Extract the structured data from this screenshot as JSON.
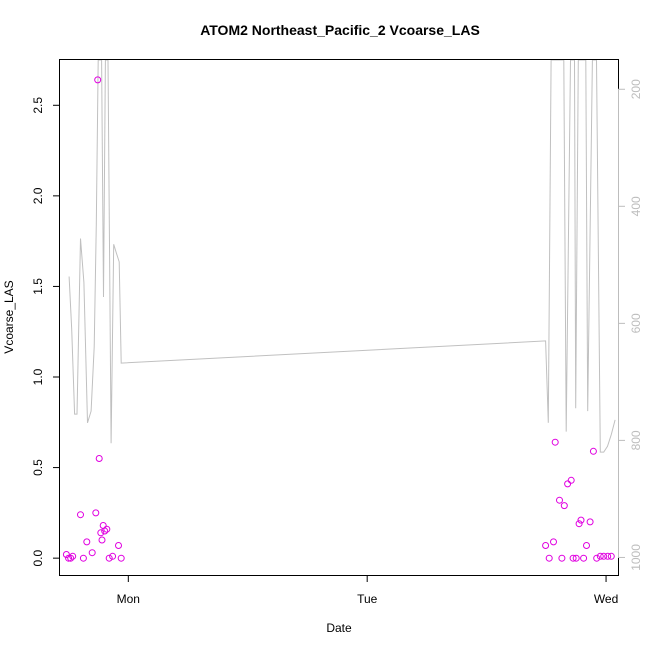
{
  "chart_data": {
    "type": "scatter",
    "title": "ATOM2 Northeast_Pacific_2 Vcoarse_LAS",
    "xlabel": "Date",
    "ylabel": "Vcoarse_LAS",
    "x_ticks": [
      "Mon",
      "Tue",
      "Wed"
    ],
    "y_ticks": [
      "0.0",
      "0.5",
      "1.0",
      "1.5",
      "2.0",
      "2.5"
    ],
    "y_tick_values": [
      0,
      0.5,
      1.0,
      1.5,
      2.0,
      2.5
    ],
    "y2_ticks": [
      "200",
      "400",
      "600",
      "800",
      "1000"
    ],
    "y2_tick_values": [
      200,
      400,
      600,
      800,
      1000
    ],
    "y2_reversed": true,
    "xlim": [
      -0.286,
      2.05
    ],
    "ylim": [
      -0.093,
      2.75
    ],
    "y2lim": [
      1030,
      150
    ],
    "grid": false,
    "colors": {
      "points": "#e000e0",
      "line": "#c0c0c0",
      "axis": "#000000",
      "secondary_axis": "#bdbdbd"
    },
    "series": [
      {
        "values_xy": [
          [
            -0.259,
            0.02
          ],
          [
            -0.25,
            0.0
          ],
          [
            -0.241,
            0.0
          ],
          [
            -0.233,
            0.01
          ],
          [
            -0.2,
            0.24
          ],
          [
            -0.188,
            0.0
          ],
          [
            -0.174,
            0.09
          ],
          [
            -0.151,
            0.03
          ],
          [
            -0.136,
            0.25
          ],
          [
            -0.128,
            2.64
          ],
          [
            -0.122,
            0.55
          ],
          [
            -0.115,
            0.14
          ],
          [
            -0.11,
            0.1
          ],
          [
            -0.105,
            0.18
          ],
          [
            -0.099,
            0.15
          ],
          [
            -0.09,
            0.16
          ],
          [
            -0.08,
            0.0
          ],
          [
            -0.066,
            0.01
          ],
          [
            -0.041,
            0.07
          ],
          [
            -0.03,
            0.0
          ],
          [
            1.747,
            0.07
          ],
          [
            1.762,
            0.0
          ],
          [
            1.78,
            0.09
          ],
          [
            1.787,
            0.64
          ],
          [
            1.805,
            0.32
          ],
          [
            1.815,
            0.0
          ],
          [
            1.825,
            0.29
          ],
          [
            1.839,
            0.41
          ],
          [
            1.854,
            0.43
          ],
          [
            1.862,
            0.0
          ],
          [
            1.875,
            0.0
          ],
          [
            1.887,
            0.19
          ],
          [
            1.895,
            0.21
          ],
          [
            1.906,
            0.0
          ],
          [
            1.918,
            0.07
          ],
          [
            1.933,
            0.2
          ],
          [
            1.947,
            0.59
          ],
          [
            1.961,
            0.0
          ],
          [
            1.976,
            0.01
          ],
          [
            1.99,
            0.01
          ],
          [
            2.007,
            0.01
          ],
          [
            2.022,
            0.01
          ]
        ]
      },
      {
        "axis": "secondary",
        "values_xy": [
          [
            -0.248,
            520
          ],
          [
            -0.237,
            610
          ],
          [
            -0.225,
            755
          ],
          [
            -0.215,
            755
          ],
          [
            -0.2,
            455
          ],
          [
            -0.186,
            530
          ],
          [
            -0.171,
            770
          ],
          [
            -0.156,
            750
          ],
          [
            -0.143,
            640
          ],
          [
            -0.134,
            430
          ],
          [
            -0.126,
            150
          ],
          [
            -0.112,
            150
          ],
          [
            -0.104,
            555
          ],
          [
            -0.096,
            150
          ],
          [
            -0.085,
            150
          ],
          [
            -0.072,
            805
          ],
          [
            -0.061,
            465
          ],
          [
            -0.05,
            480
          ],
          [
            -0.038,
            495
          ],
          [
            -0.03,
            668
          ],
          [
            1.747,
            630
          ],
          [
            1.758,
            770
          ],
          [
            1.77,
            150
          ],
          [
            1.79,
            150
          ],
          [
            1.805,
            150
          ],
          [
            1.823,
            150
          ],
          [
            1.833,
            785
          ],
          [
            1.851,
            150
          ],
          [
            1.868,
            150
          ],
          [
            1.873,
            745
          ],
          [
            1.884,
            150
          ],
          [
            1.9,
            150
          ],
          [
            1.915,
            150
          ],
          [
            1.923,
            750
          ],
          [
            1.943,
            150
          ],
          [
            1.96,
            150
          ],
          [
            1.976,
            820
          ],
          [
            1.99,
            820
          ],
          [
            2.006,
            810
          ],
          [
            2.022,
            790
          ],
          [
            2.038,
            765
          ]
        ]
      }
    ]
  }
}
